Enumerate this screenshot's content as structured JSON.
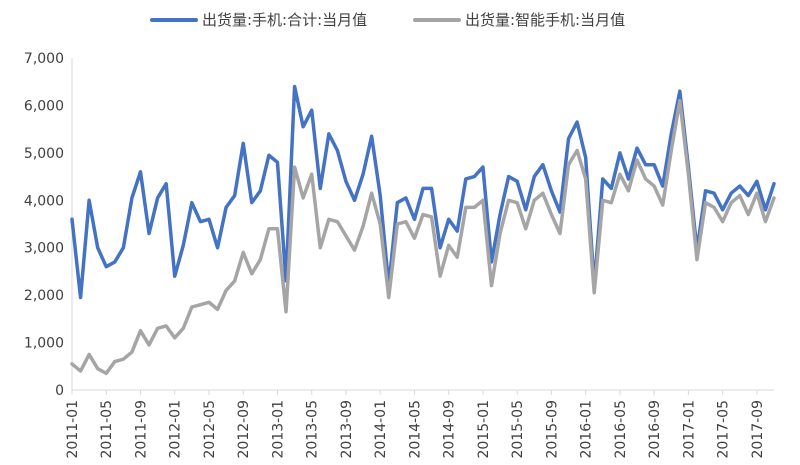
{
  "chart_data": {
    "type": "line",
    "legend_position": "top",
    "grid": false,
    "ylim": [
      0,
      7000
    ],
    "y_ticks": [
      0,
      1000,
      2000,
      3000,
      4000,
      5000,
      6000,
      7000
    ],
    "y_tick_labels": [
      "0",
      "1,000",
      "2,000",
      "3,000",
      "4,000",
      "5,000",
      "6,000",
      "7,000"
    ],
    "x_tick_labels": [
      "2011-01",
      "2011-05",
      "2011-09",
      "2012-01",
      "2012-05",
      "2012-09",
      "2013-01",
      "2013-05",
      "2013-09",
      "2014-01",
      "2014-05",
      "2014-09",
      "2015-01",
      "2015-05",
      "2015-09",
      "2016-01",
      "2016-05",
      "2016-09",
      "2017-01",
      "2017-05",
      "2017-09"
    ],
    "x": [
      "2011-01",
      "2011-02",
      "2011-03",
      "2011-04",
      "2011-05",
      "2011-06",
      "2011-07",
      "2011-08",
      "2011-09",
      "2011-10",
      "2011-11",
      "2011-12",
      "2012-01",
      "2012-02",
      "2012-03",
      "2012-04",
      "2012-05",
      "2012-06",
      "2012-07",
      "2012-08",
      "2012-09",
      "2012-10",
      "2012-11",
      "2012-12",
      "2013-01",
      "2013-02",
      "2013-03",
      "2013-04",
      "2013-05",
      "2013-06",
      "2013-07",
      "2013-08",
      "2013-09",
      "2013-10",
      "2013-11",
      "2013-12",
      "2014-01",
      "2014-02",
      "2014-03",
      "2014-04",
      "2014-05",
      "2014-06",
      "2014-07",
      "2014-08",
      "2014-09",
      "2014-10",
      "2014-11",
      "2014-12",
      "2015-01",
      "2015-02",
      "2015-03",
      "2015-04",
      "2015-05",
      "2015-06",
      "2015-07",
      "2015-08",
      "2015-09",
      "2015-10",
      "2015-11",
      "2015-12",
      "2016-01",
      "2016-02",
      "2016-03",
      "2016-04",
      "2016-05",
      "2016-06",
      "2016-07",
      "2016-08",
      "2016-09",
      "2016-10",
      "2016-11",
      "2016-12",
      "2017-01",
      "2017-02",
      "2017-03",
      "2017-04",
      "2017-05",
      "2017-06",
      "2017-07",
      "2017-08",
      "2017-09",
      "2017-10",
      "2017-11"
    ],
    "series": [
      {
        "name": "出货量:手机:合计:当月值",
        "color": "#4472C4",
        "values": [
          3600,
          1950,
          4000,
          3000,
          2600,
          2700,
          3000,
          4050,
          4600,
          3300,
          4050,
          4350,
          2400,
          3050,
          3950,
          3550,
          3600,
          3000,
          3850,
          4100,
          5200,
          3950,
          4200,
          4950,
          4800,
          2300,
          6400,
          5550,
          5900,
          4250,
          5400,
          5050,
          4400,
          4000,
          4550,
          5350,
          4100,
          2200,
          3950,
          4050,
          3600,
          4250,
          4250,
          3000,
          3600,
          3350,
          4450,
          4500,
          4700,
          2700,
          3700,
          4500,
          4400,
          3800,
          4500,
          4750,
          4200,
          3750,
          5300,
          5650,
          4900,
          2200,
          4450,
          4250,
          5000,
          4450,
          5100,
          4750,
          4750,
          4300,
          5400,
          6300,
          4700,
          2950,
          4200,
          4150,
          3800,
          4150,
          4300,
          4100,
          4400,
          3800,
          4350
        ]
      },
      {
        "name": "出货量:智能手机:当月值",
        "color": "#A5A5A5",
        "values": [
          550,
          400,
          750,
          450,
          350,
          600,
          650,
          800,
          1250,
          950,
          1300,
          1350,
          1100,
          1300,
          1750,
          1800,
          1850,
          1700,
          2100,
          2300,
          2900,
          2450,
          2750,
          3400,
          3400,
          1650,
          4700,
          4050,
          4550,
          3000,
          3600,
          3550,
          3250,
          2950,
          3450,
          4150,
          3500,
          1950,
          3500,
          3550,
          3200,
          3700,
          3650,
          2400,
          3050,
          2800,
          3850,
          3850,
          4000,
          2200,
          3300,
          4000,
          3950,
          3400,
          4000,
          4150,
          3700,
          3300,
          4750,
          5050,
          4450,
          2050,
          4000,
          3950,
          4550,
          4200,
          4850,
          4450,
          4300,
          3900,
          5050,
          6100,
          4550,
          2750,
          3950,
          3850,
          3550,
          3950,
          4100,
          3700,
          4150,
          3550,
          4050
        ]
      }
    ]
  }
}
